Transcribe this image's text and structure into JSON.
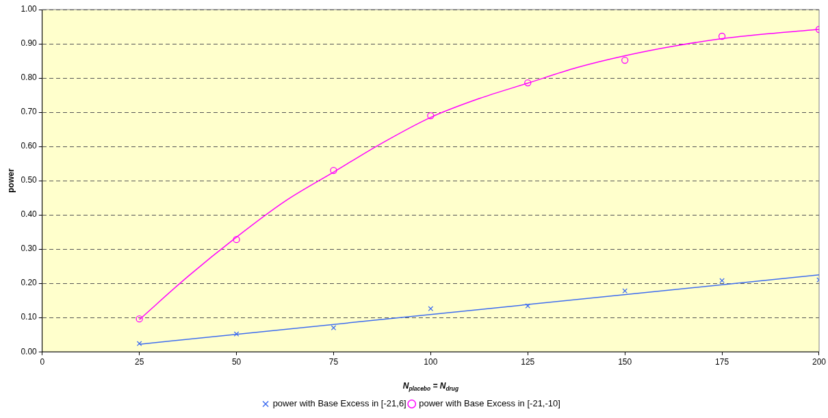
{
  "chart_data": {
    "type": "scatter",
    "xlabel": "N$_{placebo}$ = N$_{drug}$",
    "ylabel": "power",
    "xlim": [
      0,
      200
    ],
    "xticks": [
      0,
      25,
      50,
      75,
      100,
      125,
      150,
      175,
      200
    ],
    "ylim": [
      0,
      1
    ],
    "yticks": [
      {
        "value": 0,
        "label": "0.00"
      },
      {
        "value": 0.1,
        "label": "0.10"
      },
      {
        "value": 0.2,
        "label": "0.20"
      },
      {
        "value": 0.3,
        "label": "0.30"
      },
      {
        "value": 0.4,
        "label": "0.40"
      },
      {
        "value": 0.5,
        "label": "0.50"
      },
      {
        "value": 0.6,
        "label": "0.60"
      },
      {
        "value": 0.7,
        "label": "0.70"
      },
      {
        "value": 0.8,
        "label": "0.80"
      },
      {
        "value": 0.9,
        "label": "0.90"
      },
      {
        "value": 1,
        "label": "1.00"
      }
    ],
    "grid": "y",
    "legend": "bottom",
    "x": [
      25,
      50,
      75,
      100,
      125,
      150,
      175,
      200
    ],
    "series": [
      {
        "name": "power with Base Excess in [-21,6]",
        "color": "#3d6cf0",
        "marker": "cross",
        "values": [
          0.024,
          0.052,
          0.07,
          0.126,
          0.134,
          0.178,
          0.208,
          0.21
        ]
      },
      {
        "name": "power with Base Excess in [-21,-10]",
        "color": "#ff00ff",
        "marker": "circle",
        "values": [
          0.096,
          0.328,
          0.53,
          0.69,
          0.786,
          0.852,
          0.922,
          0.942
        ]
      },
      {
        "type": "line",
        "color": "#3d6cf0",
        "marker": "none",
        "x": [
          25,
          200
        ],
        "values": [
          0.022,
          0.225
        ]
      },
      {
        "type": "line",
        "color": "#ff00ff",
        "marker": "none",
        "x": [
          25,
          37.5,
          50,
          62.5,
          75,
          87.5,
          100,
          112.5,
          125,
          137.5,
          150,
          162.5,
          175,
          187.5,
          200
        ],
        "values": [
          0.094,
          0.22,
          0.335,
          0.44,
          0.525,
          0.61,
          0.685,
          0.74,
          0.785,
          0.83,
          0.865,
          0.893,
          0.915,
          0.93,
          0.942
        ]
      }
    ]
  }
}
